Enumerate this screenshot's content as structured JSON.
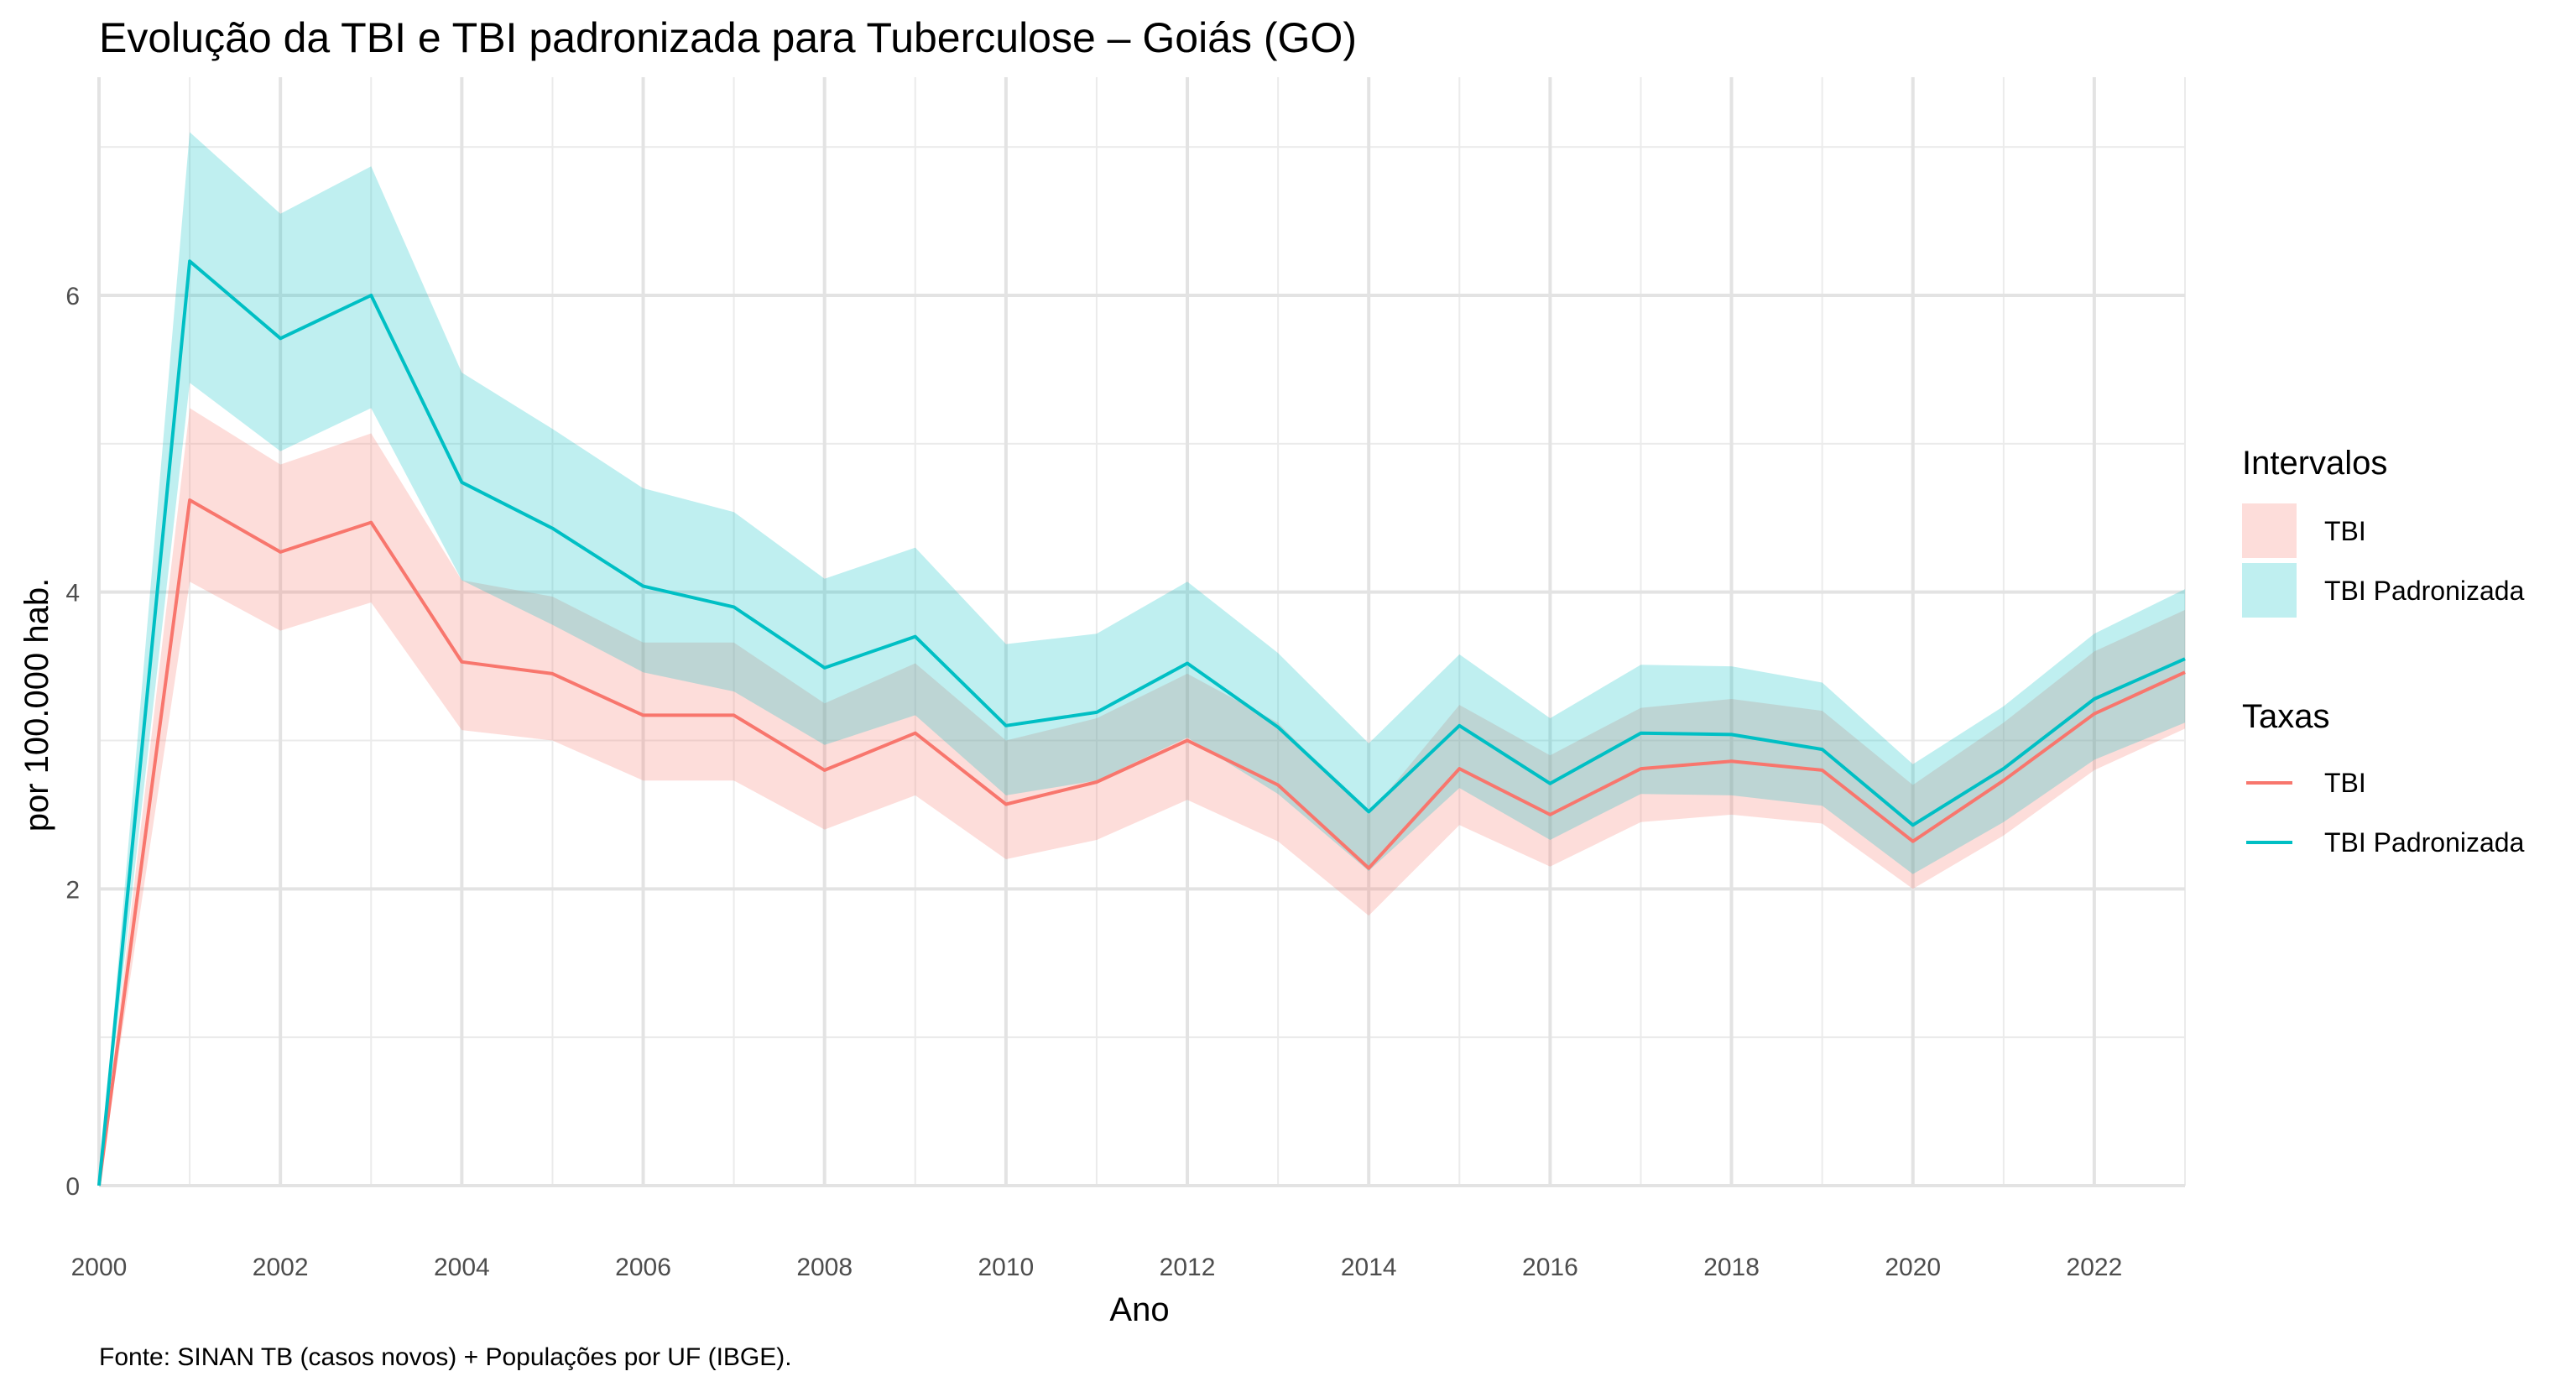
{
  "chart_data": {
    "type": "line",
    "title": "Evolução da TBI e TBI padronizada para Tuberculose – Goiás (GO)",
    "xlabel": "Ano",
    "ylabel": "por 100.000 hab.",
    "caption": "Fonte: SINAN TB (casos novos) + Populações por UF (IBGE).",
    "xlim": [
      2000,
      2023
    ],
    "ylim": [
      0,
      7
    ],
    "x_ticks": [
      2000,
      2002,
      2004,
      2006,
      2008,
      2010,
      2012,
      2014,
      2016,
      2018,
      2020,
      2022
    ],
    "x_tick_labels": [
      "2000",
      "2002",
      "2004",
      "2006",
      "2008",
      "2010",
      "2012",
      "2014",
      "2016",
      "2018",
      "2020",
      "2022"
    ],
    "y_ticks": [
      0,
      2,
      4,
      6
    ],
    "y_tick_labels": [
      "0",
      "2",
      "4",
      "6"
    ],
    "grid": true,
    "legend_position": "right",
    "x": [
      2000,
      2001,
      2002,
      2003,
      2004,
      2005,
      2006,
      2007,
      2008,
      2009,
      2010,
      2011,
      2012,
      2013,
      2014,
      2015,
      2016,
      2017,
      2018,
      2019,
      2020,
      2021,
      2022,
      2023
    ],
    "series": [
      {
        "name": "TBI",
        "color": "#F8766D",
        "values": [
          0.0,
          4.62,
          4.27,
          4.47,
          3.53,
          3.45,
          3.17,
          3.17,
          2.8,
          3.05,
          2.57,
          2.72,
          3.0,
          2.7,
          2.14,
          2.81,
          2.5,
          2.81,
          2.86,
          2.8,
          2.32,
          2.73,
          3.18,
          3.46
        ],
        "lower": [
          0.0,
          4.07,
          3.74,
          3.93,
          3.07,
          3.0,
          2.73,
          2.73,
          2.4,
          2.63,
          2.2,
          2.33,
          2.6,
          2.32,
          1.82,
          2.43,
          2.15,
          2.45,
          2.5,
          2.44,
          2.0,
          2.36,
          2.8,
          3.08
        ],
        "upper": [
          0.0,
          5.24,
          4.86,
          5.07,
          4.08,
          3.97,
          3.66,
          3.66,
          3.25,
          3.52,
          3.0,
          3.15,
          3.45,
          3.12,
          2.5,
          3.24,
          2.9,
          3.22,
          3.28,
          3.2,
          2.7,
          3.12,
          3.6,
          3.88
        ]
      },
      {
        "name": "TBI Padronizada",
        "color": "#00BFC4",
        "values": [
          0.0,
          6.23,
          5.71,
          6.0,
          4.74,
          4.43,
          4.04,
          3.9,
          3.49,
          3.7,
          3.1,
          3.19,
          3.52,
          3.09,
          2.52,
          3.1,
          2.71,
          3.05,
          3.04,
          2.94,
          2.43,
          2.81,
          3.28,
          3.55
        ],
        "lower": [
          0.0,
          5.41,
          4.95,
          5.24,
          4.08,
          3.78,
          3.46,
          3.33,
          2.97,
          3.17,
          2.63,
          2.73,
          3.02,
          2.64,
          2.12,
          2.68,
          2.33,
          2.64,
          2.63,
          2.56,
          2.1,
          2.45,
          2.87,
          3.12
        ],
        "upper": [
          0.0,
          7.1,
          6.55,
          6.87,
          5.48,
          5.1,
          4.7,
          4.54,
          4.09,
          4.3,
          3.65,
          3.72,
          4.07,
          3.59,
          2.98,
          3.58,
          3.15,
          3.51,
          3.5,
          3.39,
          2.84,
          3.23,
          3.72,
          4.02
        ]
      }
    ],
    "legend": {
      "ribbons_title": "Intervalos",
      "ribbons": [
        "TBI",
        "TBI Padronizada"
      ],
      "lines_title": "Taxas",
      "lines": [
        "TBI",
        "TBI Padronizada"
      ]
    }
  }
}
